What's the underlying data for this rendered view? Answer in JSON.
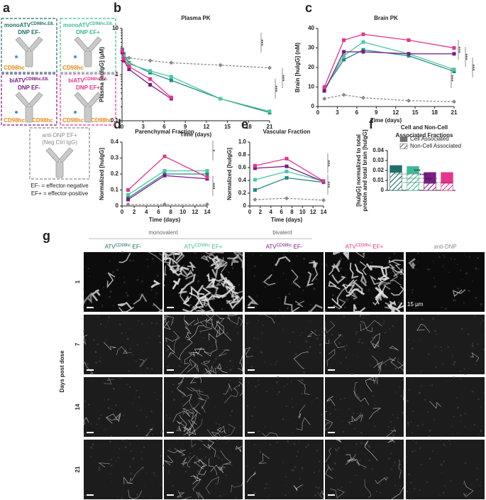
{
  "panel_labels": [
    "a",
    "b",
    "c",
    "d",
    "e",
    "f",
    "g"
  ],
  "panel_a": {
    "boxes": [
      {
        "name": "monoATV",
        "sup": "CD98hc.E8.",
        "line2": "DNP EF-",
        "targets": [
          "CD98hc"
        ],
        "color": "#1f6f6a"
      },
      {
        "name": "monoATV",
        "sup": "CD98hc.E8.",
        "line2": "DNP EF+",
        "targets": [
          "CD98hc"
        ],
        "color": "#3dbb98"
      },
      {
        "name": "biATV",
        "sup": "CD98hc.E8.",
        "line2": "DNP EF-",
        "targets": [
          "CD98hc",
          "CD98hc"
        ],
        "color": "#7b1a86"
      },
      {
        "name": "biATV",
        "sup": "CD98hc.E8.",
        "line2": "DNP EF+",
        "targets": [
          "CD98hc",
          "CD98hc"
        ],
        "color": "#e6348c"
      }
    ],
    "control": {
      "line1": "anti-DNP EF+",
      "line2": "(Neg Ctrl IgG)",
      "color": "#8a8a8a"
    },
    "legend": [
      "EF- = effector-negative",
      "EF+ = effector-positive"
    ]
  },
  "chart_data": [
    {
      "type": "line",
      "title": "Plasma PK",
      "xlabel": "Time (days)",
      "ylabel": "Plasma [huIgG] (μM)",
      "yscale": "log",
      "xlim": [
        0,
        21
      ],
      "ylim": [
        0.1,
        10
      ],
      "xticks": [
        0,
        3,
        6,
        9,
        12,
        15,
        18,
        21
      ],
      "yticks": [
        0.1,
        1,
        10
      ],
      "annotations": [
        "***",
        "***",
        "***"
      ],
      "series": [
        {
          "color": "#8a8a8a",
          "linestyle": "dashed",
          "x": [
            0.04,
            0.25,
            1,
            4,
            7,
            14,
            21
          ],
          "values": [
            3,
            2.5,
            2.3,
            2,
            1.8,
            1.6,
            1.4
          ]
        },
        {
          "color": "#1f8a88",
          "x": [
            0.04,
            0.25,
            1,
            4,
            7,
            14,
            21
          ],
          "values": [
            3.5,
            2.8,
            1.8,
            1.1,
            0.75,
            0.3,
            0.15
          ]
        },
        {
          "color": "#4fc79d",
          "x": [
            0.04,
            0.25,
            1,
            4,
            7,
            14,
            21
          ],
          "values": [
            3.2,
            2.5,
            1.7,
            1.2,
            0.9,
            0.3,
            0.16
          ]
        },
        {
          "color": "#7b1a86",
          "x": [
            0.04,
            0.25,
            1,
            4,
            7
          ],
          "values": [
            3,
            2,
            1.3,
            0.6,
            0.3
          ]
        },
        {
          "color": "#e6348c",
          "x": [
            0.04,
            0.25,
            1,
            4,
            7
          ],
          "values": [
            3.3,
            2.2,
            1.5,
            0.8,
            0.32
          ]
        }
      ]
    },
    {
      "type": "line",
      "title": "Brain PK",
      "xlabel": "Time (days)",
      "ylabel": "Brain [huIgG] (nM)",
      "xlim": [
        0,
        21
      ],
      "ylim": [
        0,
        40
      ],
      "xticks": [
        0,
        3,
        6,
        9,
        12,
        15,
        18,
        21
      ],
      "yticks": [
        0,
        10,
        20,
        30,
        40
      ],
      "x": [
        1,
        4,
        7,
        14,
        21
      ],
      "annotations": [
        "***",
        "***",
        "***",
        "***"
      ],
      "series": [
        {
          "color": "#8a8a8a",
          "linestyle": "dashed",
          "values": [
            4,
            6,
            4.5,
            3,
            2.5
          ]
        },
        {
          "color": "#1f8a88",
          "values": [
            9,
            24,
            29,
            26,
            18
          ]
        },
        {
          "color": "#4fc79d",
          "values": [
            8,
            26,
            33,
            27,
            19
          ]
        },
        {
          "color": "#7b1a86",
          "values": [
            8,
            28,
            28,
            27,
            27
          ]
        },
        {
          "color": "#e6348c",
          "values": [
            10,
            34,
            37,
            34,
            30
          ]
        }
      ]
    },
    {
      "type": "line",
      "title": "Parenchymal Fraction",
      "xlabel": "Time (days)",
      "ylabel": "Normalized [huIgG]",
      "xlim": [
        0,
        14
      ],
      "ylim": [
        0,
        0.4
      ],
      "xticks": [
        0,
        2,
        4,
        6,
        8,
        10,
        12,
        14
      ],
      "yticks": [
        0,
        0.1,
        0.2,
        0.3,
        0.4
      ],
      "x": [
        1,
        7,
        14
      ],
      "annotations": [
        "*",
        "***"
      ],
      "series": [
        {
          "color": "#8a8a8a",
          "linestyle": "dashed",
          "values": [
            0.01,
            0.01,
            0.01
          ]
        },
        {
          "color": "#1f8a88",
          "values": [
            0.05,
            0.2,
            0.2
          ]
        },
        {
          "color": "#4fc79d",
          "values": [
            0.07,
            0.22,
            0.22
          ]
        },
        {
          "color": "#7b1a86",
          "values": [
            0.04,
            0.19,
            0.17
          ]
        },
        {
          "color": "#e6348c",
          "values": [
            0.1,
            0.31,
            0.18
          ]
        }
      ]
    },
    {
      "type": "line",
      "title": "Vascular Fraction",
      "xlabel": "Time (days)",
      "ylabel": "Normalized [huIgG]",
      "xlim": [
        0,
        14
      ],
      "ylim": [
        0,
        1
      ],
      "xticks": [
        0,
        2,
        4,
        6,
        8,
        10,
        12,
        14
      ],
      "yticks": [
        0,
        0.2,
        0.4,
        0.6,
        0.8,
        {
          "value": 1,
          "label": "1.0"
        }
      ],
      "x": [
        1,
        7,
        14
      ],
      "annotations": [
        "***",
        "***"
      ],
      "series": [
        {
          "color": "#8a8a8a",
          "linestyle": "dashed",
          "values": [
            0.1,
            0.12,
            0.09
          ]
        },
        {
          "color": "#1f8a88",
          "values": [
            0.25,
            0.44,
            0.37
          ]
        },
        {
          "color": "#4fc79d",
          "values": [
            0.41,
            0.54,
            0.39
          ]
        },
        {
          "color": "#7b1a86",
          "values": [
            0.59,
            0.62,
            0.38
          ]
        },
        {
          "color": "#e6348c",
          "values": [
            0.63,
            0.74,
            0.39
          ]
        }
      ]
    },
    {
      "type": "stacked_bar",
      "title": [
        "Cell and Non-Cell",
        "Associated Fractions"
      ],
      "ylabel": [
        "[huIgG] normalized to total",
        "protein and total brain [huIgG]"
      ],
      "categories": [
        null,
        null,
        null,
        null
      ],
      "colors": [
        "#1f6f6a",
        "#3dbb98",
        "#7b1a86",
        "#e6348c"
      ],
      "ylim": [
        0,
        0.04
      ],
      "yticks": [
        0,
        0.01,
        0.02,
        0.03,
        0.04
      ],
      "legend": "upper right",
      "legend_color": "#6e6e6e",
      "annotations": [
        "***",
        "***",
        "***"
      ],
      "series": [
        {
          "name": "Non-Cell Associated",
          "pattern": "hatched",
          "values": [
            0.018,
            0.017,
            0.007,
            0.007
          ]
        },
        {
          "name": "Cell Associated",
          "pattern": "solid",
          "values": [
            0.007,
            0.007,
            0.011,
            0.011
          ]
        }
      ]
    }
  ],
  "panel_g": {
    "groups": [
      "monovalent",
      "bivalent"
    ],
    "columns": [
      {
        "name": "ATV",
        "sup": "CD98hc",
        "suffix": " EF-",
        "color": "#1f6f6a"
      },
      {
        "name": "ATV",
        "sup": "CD98hc",
        "suffix": " EF+",
        "color": "#3dbb98"
      },
      {
        "name": "ATV",
        "sup": "CD98hc",
        "suffix": " EF-",
        "color": "#7b1a86"
      },
      {
        "name": "ATV",
        "sup": "CD98hc",
        "suffix": " EF+",
        "color": "#e6348c"
      },
      {
        "name": "anti-DNP",
        "color": "#8a8a8a"
      }
    ],
    "rows": [
      "1",
      "7",
      "14",
      "21"
    ],
    "row_axis": "Days post dose",
    "scale_bar": "15 μm"
  }
}
